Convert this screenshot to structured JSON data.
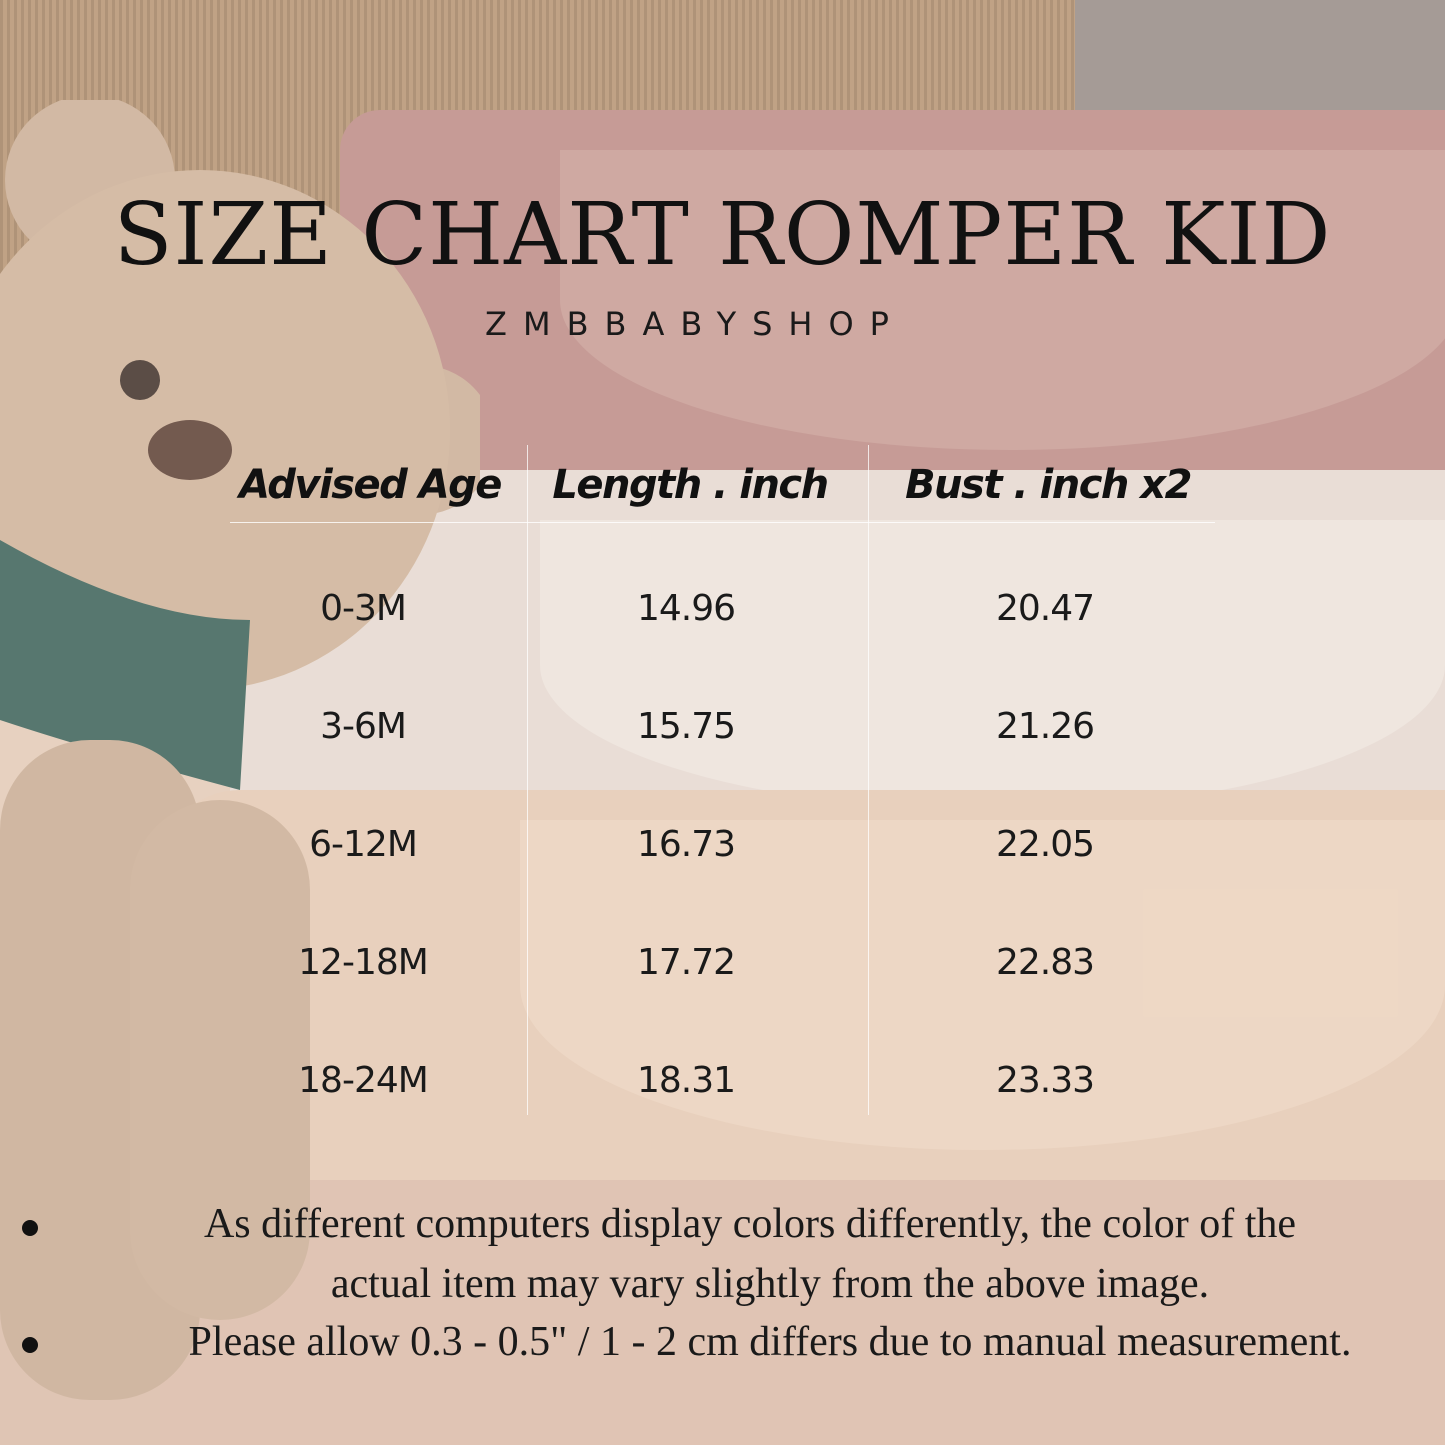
{
  "title": "SIZE CHART ROMPER KID",
  "brand": "ZMBBABYSHOP",
  "table": {
    "headers": [
      "Advised Age",
      "Length . inch",
      "Bust . inch x2"
    ],
    "rows": [
      [
        "0-3M",
        "14.96",
        "20.47"
      ],
      [
        "3-6M",
        "15.75",
        "21.26"
      ],
      [
        "6-12M",
        "16.73",
        "22.05"
      ],
      [
        "12-18M",
        "17.72",
        "22.83"
      ],
      [
        "18-24M",
        "18.31",
        "23.33"
      ]
    ]
  },
  "notes": {
    "line1a": "As different computers display colors differently, the color of the",
    "line1b": "actual item may vary slightly from the above image.",
    "line2": "Please allow 0.3 - 0.5\" / 1 - 2 cm differs due to manual measurement."
  },
  "colors": {
    "text": "#111111",
    "pink_garment": "#b98580",
    "white_garment": "#e7ddd6",
    "cream_garment": "#e6cbb4"
  }
}
